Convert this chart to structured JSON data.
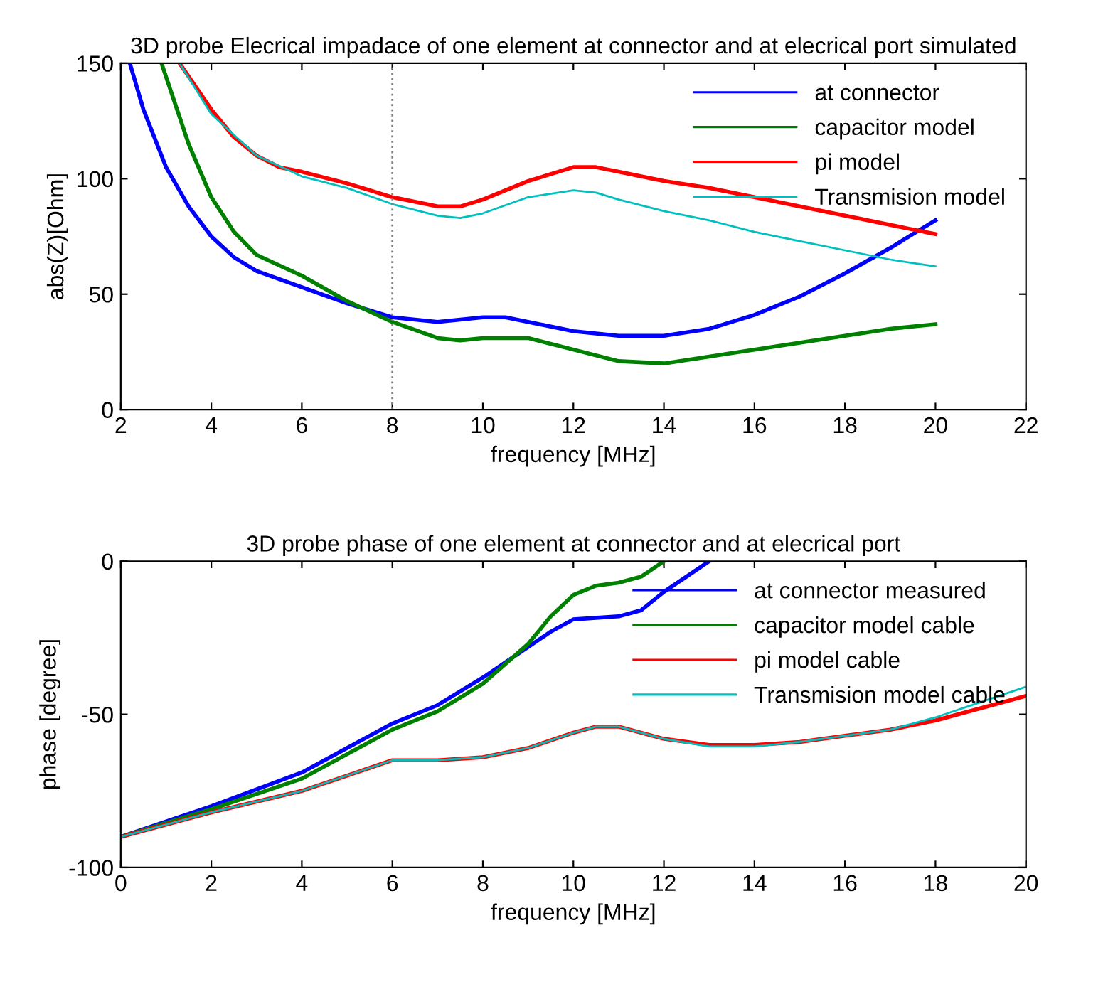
{
  "chart_data": [
    {
      "type": "line",
      "title": "3D probe Elecrical impadace of one element at connector and at elecrical port simulated",
      "xlabel": "frequency [MHz]",
      "ylabel": "abs(Z)[Ohm]",
      "xlim": [
        2,
        22
      ],
      "ylim": [
        0,
        150
      ],
      "xticks": [
        2,
        4,
        6,
        8,
        10,
        12,
        14,
        16,
        18,
        20,
        22
      ],
      "yticks": [
        0,
        50,
        100,
        150
      ],
      "grid": false,
      "legend": "top right",
      "ref_lines": [
        {
          "axis": "x",
          "value": 8,
          "color": "#808080",
          "line_style": "dotted"
        }
      ],
      "series": [
        {
          "name": "at connector",
          "color": "#0000ff",
          "x": [
            2.2,
            2.5,
            3,
            3.5,
            4,
            4.5,
            5,
            6,
            7,
            8,
            9,
            10,
            10.5,
            11,
            12,
            13,
            14,
            15,
            16,
            17,
            18,
            19,
            20
          ],
          "values": [
            150,
            130,
            105,
            88,
            75,
            66,
            60,
            53,
            46,
            40,
            38,
            40,
            40,
            38,
            34,
            32,
            32,
            35,
            41,
            49,
            59,
            70,
            82
          ]
        },
        {
          "name": "capacitor model",
          "color": "#008000",
          "x": [
            2.9,
            3.5,
            4,
            4.5,
            5,
            6,
            7,
            8,
            9,
            9.5,
            10,
            11,
            12,
            13,
            14,
            15,
            16,
            17,
            18,
            19,
            20
          ],
          "values": [
            150,
            115,
            92,
            77,
            67,
            58,
            47,
            38,
            31,
            30,
            31,
            31,
            26,
            21,
            20,
            23,
            26,
            29,
            32,
            35,
            37
          ]
        },
        {
          "name": "pi model",
          "color": "#ff0000",
          "x": [
            3.3,
            4,
            4.5,
            5,
            5.5,
            6,
            7,
            8,
            9,
            9.5,
            10,
            11,
            12,
            12.5,
            13,
            14,
            15,
            16,
            17,
            18,
            19,
            20
          ],
          "values": [
            150,
            130,
            118,
            110,
            105,
            103,
            98,
            92,
            88,
            88,
            91,
            99,
            105,
            105,
            103,
            99,
            96,
            92,
            88,
            84,
            80,
            76
          ]
        },
        {
          "name": "Transmision model",
          "color": "#00bfbf",
          "x": [
            3.3,
            4,
            5,
            6,
            7,
            8,
            9,
            9.5,
            10,
            11,
            12,
            12.5,
            13,
            14,
            15,
            16,
            17,
            18,
            19,
            20
          ],
          "values": [
            150,
            128,
            110,
            101,
            96,
            89,
            84,
            83,
            85,
            92,
            95,
            94,
            91,
            86,
            82,
            77,
            73,
            69,
            65,
            62
          ]
        }
      ]
    },
    {
      "type": "line",
      "title": "3D probe phase of one element at connector and at elecrical port",
      "xlabel": "frequency [MHz]",
      "ylabel": "phase [degree]",
      "xlim": [
        0,
        20
      ],
      "ylim": [
        -100,
        0
      ],
      "xticks": [
        0,
        2,
        4,
        6,
        8,
        10,
        12,
        14,
        16,
        18,
        20
      ],
      "yticks": [
        -100,
        -50,
        0
      ],
      "grid": false,
      "legend": "top right",
      "series": [
        {
          "name": "at connector measured",
          "color": "#0000ff",
          "x": [
            0,
            2,
            4,
            5,
            6,
            7,
            8,
            9,
            9.5,
            10,
            11,
            11.5,
            12,
            12.5,
            13
          ],
          "values": [
            -90,
            -80,
            -69,
            -61,
            -53,
            -47,
            -38,
            -28,
            -23,
            -19,
            -18,
            -16,
            -10,
            -5,
            0
          ]
        },
        {
          "name": "capacitor model cable",
          "color": "#008000",
          "x": [
            0,
            2,
            4,
            5,
            6,
            7,
            8,
            9,
            9.5,
            10,
            10.5,
            11,
            11.5,
            12
          ],
          "values": [
            -90,
            -81,
            -71,
            -63,
            -55,
            -49,
            -40,
            -27,
            -18,
            -11,
            -8,
            -7,
            -5,
            0
          ]
        },
        {
          "name": "pi model cable",
          "color": "#ff0000",
          "x": [
            0,
            2,
            4,
            5,
            6,
            7,
            8,
            9,
            10,
            10.5,
            11,
            12,
            13,
            14,
            15,
            16,
            17,
            18,
            19,
            20
          ],
          "values": [
            -90,
            -82,
            -75,
            -70,
            -65,
            -65,
            -64,
            -61,
            -56,
            -54,
            -54,
            -58,
            -60,
            -60,
            -59,
            -57,
            -55,
            -52,
            -48,
            -44
          ]
        },
        {
          "name": "Transmision model cable",
          "color": "#00bfbf",
          "x": [
            0,
            2,
            4,
            5,
            6,
            7,
            8,
            9,
            10,
            10.5,
            11,
            12,
            13,
            14,
            15,
            16,
            17,
            18,
            19,
            20
          ],
          "values": [
            -90,
            -82,
            -75,
            -70,
            -65,
            -65,
            -64,
            -61,
            -56,
            -54,
            -54,
            -58,
            -60.5,
            -60.5,
            -59,
            -57,
            -55,
            -51,
            -46,
            -41
          ]
        }
      ]
    }
  ]
}
